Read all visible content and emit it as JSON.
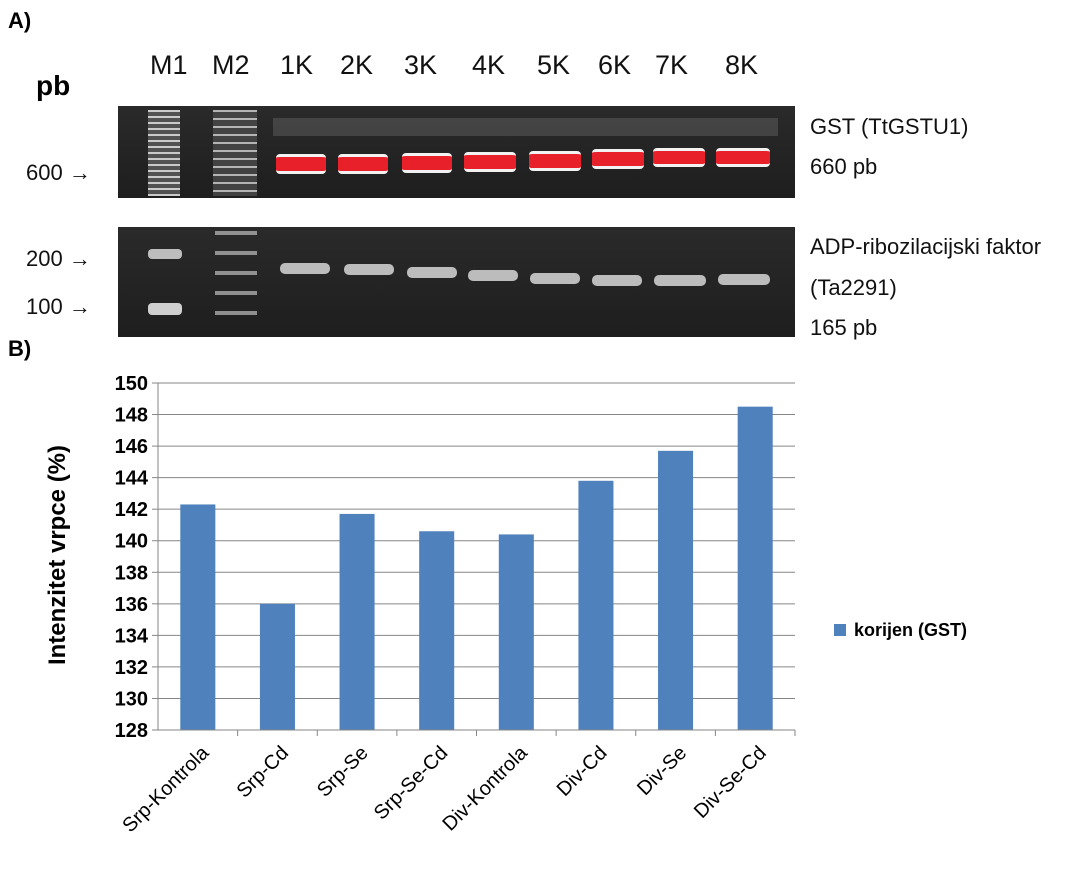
{
  "panel_a": {
    "letter": "A)",
    "pb_label": "pb",
    "lanes": [
      "M1",
      "M2",
      "1K",
      "2K",
      "3K",
      "4K",
      "5K",
      "6K",
      "7K",
      "8K"
    ],
    "gel_top": {
      "marker": "600",
      "label_line1": "GST (TtGSTU1)",
      "label_line2": "660 pb"
    },
    "gel_bottom": {
      "marker_high": "200",
      "marker_low": "100",
      "label_line1": "ADP-ribozilacijski faktor",
      "label_line2": "(Ta2291)",
      "label_line3": "165 pb"
    },
    "arrow_glyph": "→"
  },
  "panel_b": {
    "letter": "B)"
  },
  "chart_data": {
    "type": "bar",
    "categories": [
      "Srp-Kontrola",
      "Srp-Cd",
      "Srp-Se",
      "Srp-Se-Cd",
      "Div-Kontrola",
      "Div-Cd",
      "Div-Se",
      "Div-Se-Cd"
    ],
    "series": [
      {
        "name": "korijen (GST)",
        "values": [
          142.3,
          136.0,
          141.7,
          140.6,
          140.4,
          143.8,
          145.7,
          148.5
        ],
        "color": "#4f81bd"
      }
    ],
    "ylabel": "Intenzitet vrpce (%)",
    "ylim": [
      128,
      150
    ],
    "yticks": [
      128,
      130,
      132,
      134,
      136,
      138,
      140,
      142,
      144,
      146,
      148,
      150
    ],
    "grid": true,
    "legend_position": "right"
  }
}
